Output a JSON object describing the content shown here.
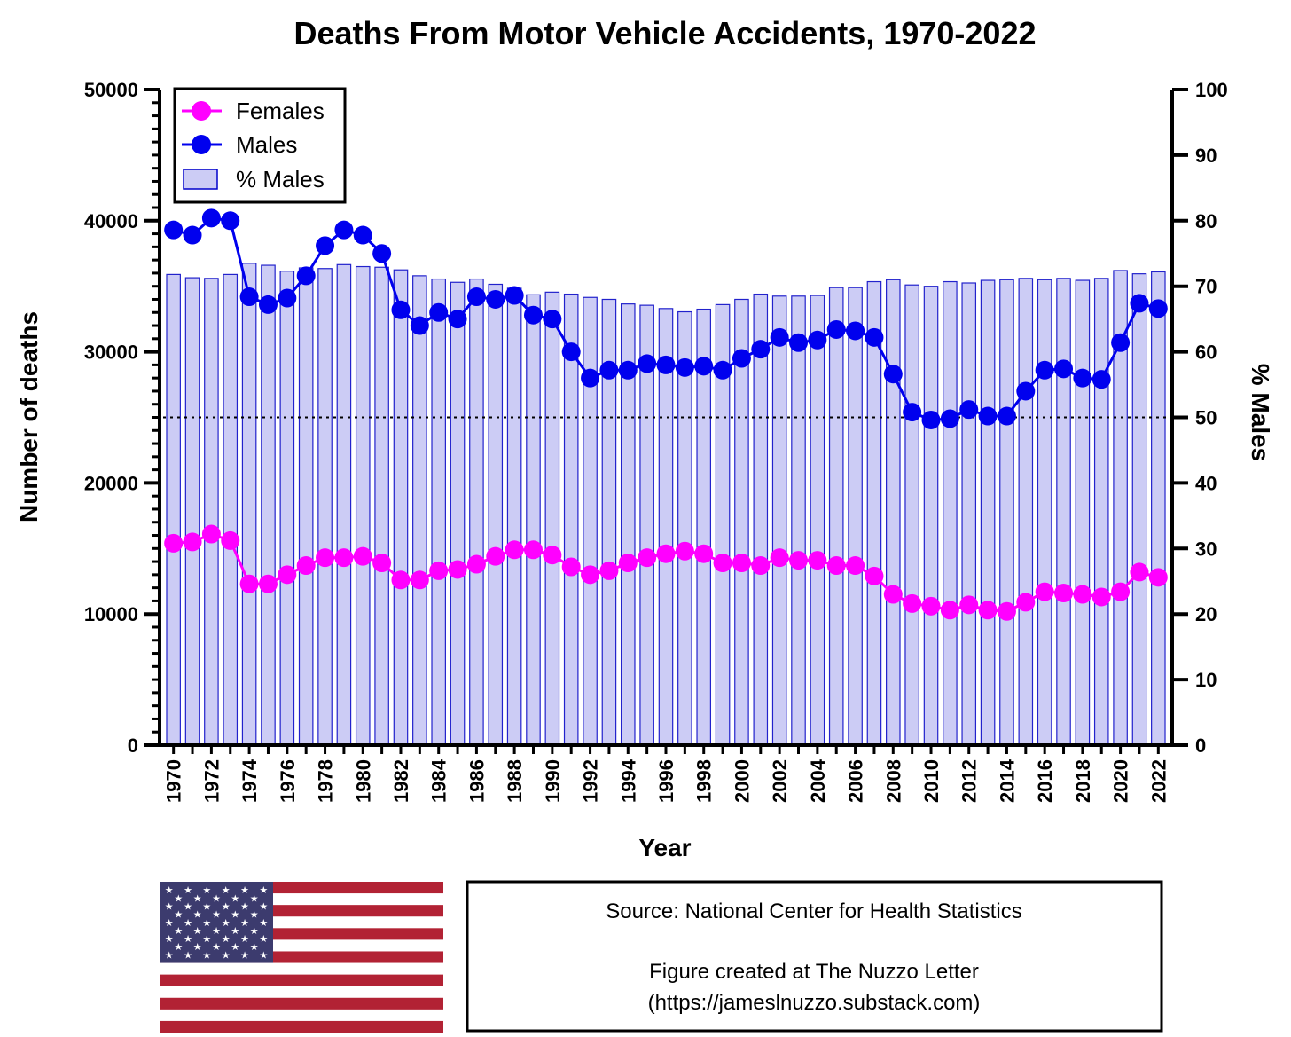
{
  "chart_data": {
    "type": "line",
    "title": "Deaths From Motor Vehicle Accidents, 1970-2022",
    "xlabel": "Year",
    "ylabel": "Number of deaths",
    "y2label": "% Males",
    "ylim": [
      0,
      50000
    ],
    "y2lim": [
      0,
      100
    ],
    "y_ticks": [
      "0",
      "10000",
      "20000",
      "30000",
      "40000",
      "50000"
    ],
    "y2_ticks": [
      "0",
      "10",
      "20",
      "30",
      "40",
      "50",
      "60",
      "70",
      "80",
      "90",
      "100"
    ],
    "reference_line_pct": 50,
    "x": [
      1970,
      1971,
      1972,
      1973,
      1974,
      1975,
      1976,
      1977,
      1978,
      1979,
      1980,
      1981,
      1982,
      1983,
      1984,
      1985,
      1986,
      1987,
      1988,
      1989,
      1990,
      1991,
      1992,
      1993,
      1994,
      1995,
      1996,
      1997,
      1998,
      1999,
      2000,
      2001,
      2002,
      2003,
      2004,
      2005,
      2006,
      2007,
      2008,
      2009,
      2010,
      2011,
      2012,
      2013,
      2014,
      2015,
      2016,
      2017,
      2018,
      2019,
      2020,
      2021,
      2022
    ],
    "x_tick_labels": [
      "1970",
      "1972",
      "1974",
      "1976",
      "1978",
      "1980",
      "1982",
      "1984",
      "1986",
      "1988",
      "1990",
      "1992",
      "1994",
      "1996",
      "1998",
      "2000",
      "2002",
      "2004",
      "2006",
      "2008",
      "2010",
      "2012",
      "2014",
      "2016",
      "2018",
      "2020",
      "2022"
    ],
    "legend": [
      "Females",
      "Males",
      "% Males"
    ],
    "legend_position": "top-left",
    "series": [
      {
        "name": "Females",
        "type": "line",
        "axis": "left",
        "color": "#ff00ff",
        "values": [
          15400,
          15500,
          16100,
          15600,
          12300,
          12300,
          13000,
          13700,
          14300,
          14300,
          14400,
          13900,
          12600,
          12600,
          13300,
          13400,
          13800,
          14400,
          14900,
          14900,
          14500,
          13600,
          13000,
          13300,
          13900,
          14300,
          14600,
          14800,
          14600,
          13900,
          13900,
          13700,
          14300,
          14100,
          14100,
          13700,
          13700,
          12900,
          11500,
          10800,
          10600,
          10300,
          10700,
          10300,
          10200,
          10900,
          11700,
          11600,
          11500,
          11300,
          11700,
          13200,
          12800
        ]
      },
      {
        "name": "Males",
        "type": "line",
        "axis": "left",
        "color": "#0000ee",
        "values": [
          39300,
          38900,
          40200,
          40000,
          34200,
          33600,
          34100,
          35800,
          38100,
          39300,
          38900,
          37500,
          33200,
          32000,
          33000,
          32500,
          34200,
          34000,
          34300,
          32800,
          32500,
          30000,
          28000,
          28600,
          28600,
          29100,
          29000,
          28800,
          28900,
          28600,
          29500,
          30200,
          31100,
          30700,
          30900,
          31700,
          31600,
          31100,
          28300,
          25400,
          24800,
          24900,
          25600,
          25100,
          25100,
          27000,
          28600,
          28700,
          28000,
          27900,
          30700,
          33700,
          33300
        ]
      },
      {
        "name": "% Males",
        "type": "bar",
        "axis": "right",
        "color": "#ccccf5",
        "values": [
          71.8,
          71.3,
          71.2,
          71.8,
          73.5,
          73.2,
          72.3,
          72.8,
          72.7,
          73.3,
          73.0,
          72.9,
          72.5,
          71.6,
          71.1,
          70.6,
          71.1,
          70.3,
          69.7,
          68.7,
          69.1,
          68.8,
          68.3,
          68.0,
          67.3,
          67.1,
          66.6,
          66.1,
          66.5,
          67.2,
          68.0,
          68.8,
          68.5,
          68.5,
          68.6,
          69.8,
          69.8,
          70.7,
          71.0,
          70.2,
          70.0,
          70.7,
          70.5,
          70.9,
          71.0,
          71.2,
          71.0,
          71.2,
          70.9,
          71.2,
          72.4,
          71.9,
          72.2
        ]
      }
    ]
  },
  "footer": {
    "source_line": "Source: National Center for Health Statistics",
    "credit_line1": "Figure created at The Nuzzo Letter",
    "credit_line2": "(https://jameslnuzzo.substack.com)"
  },
  "flag": {
    "name": "us-flag-icon",
    "red": "#b22234",
    "blue": "#3c3b6e",
    "white": "#ffffff"
  }
}
